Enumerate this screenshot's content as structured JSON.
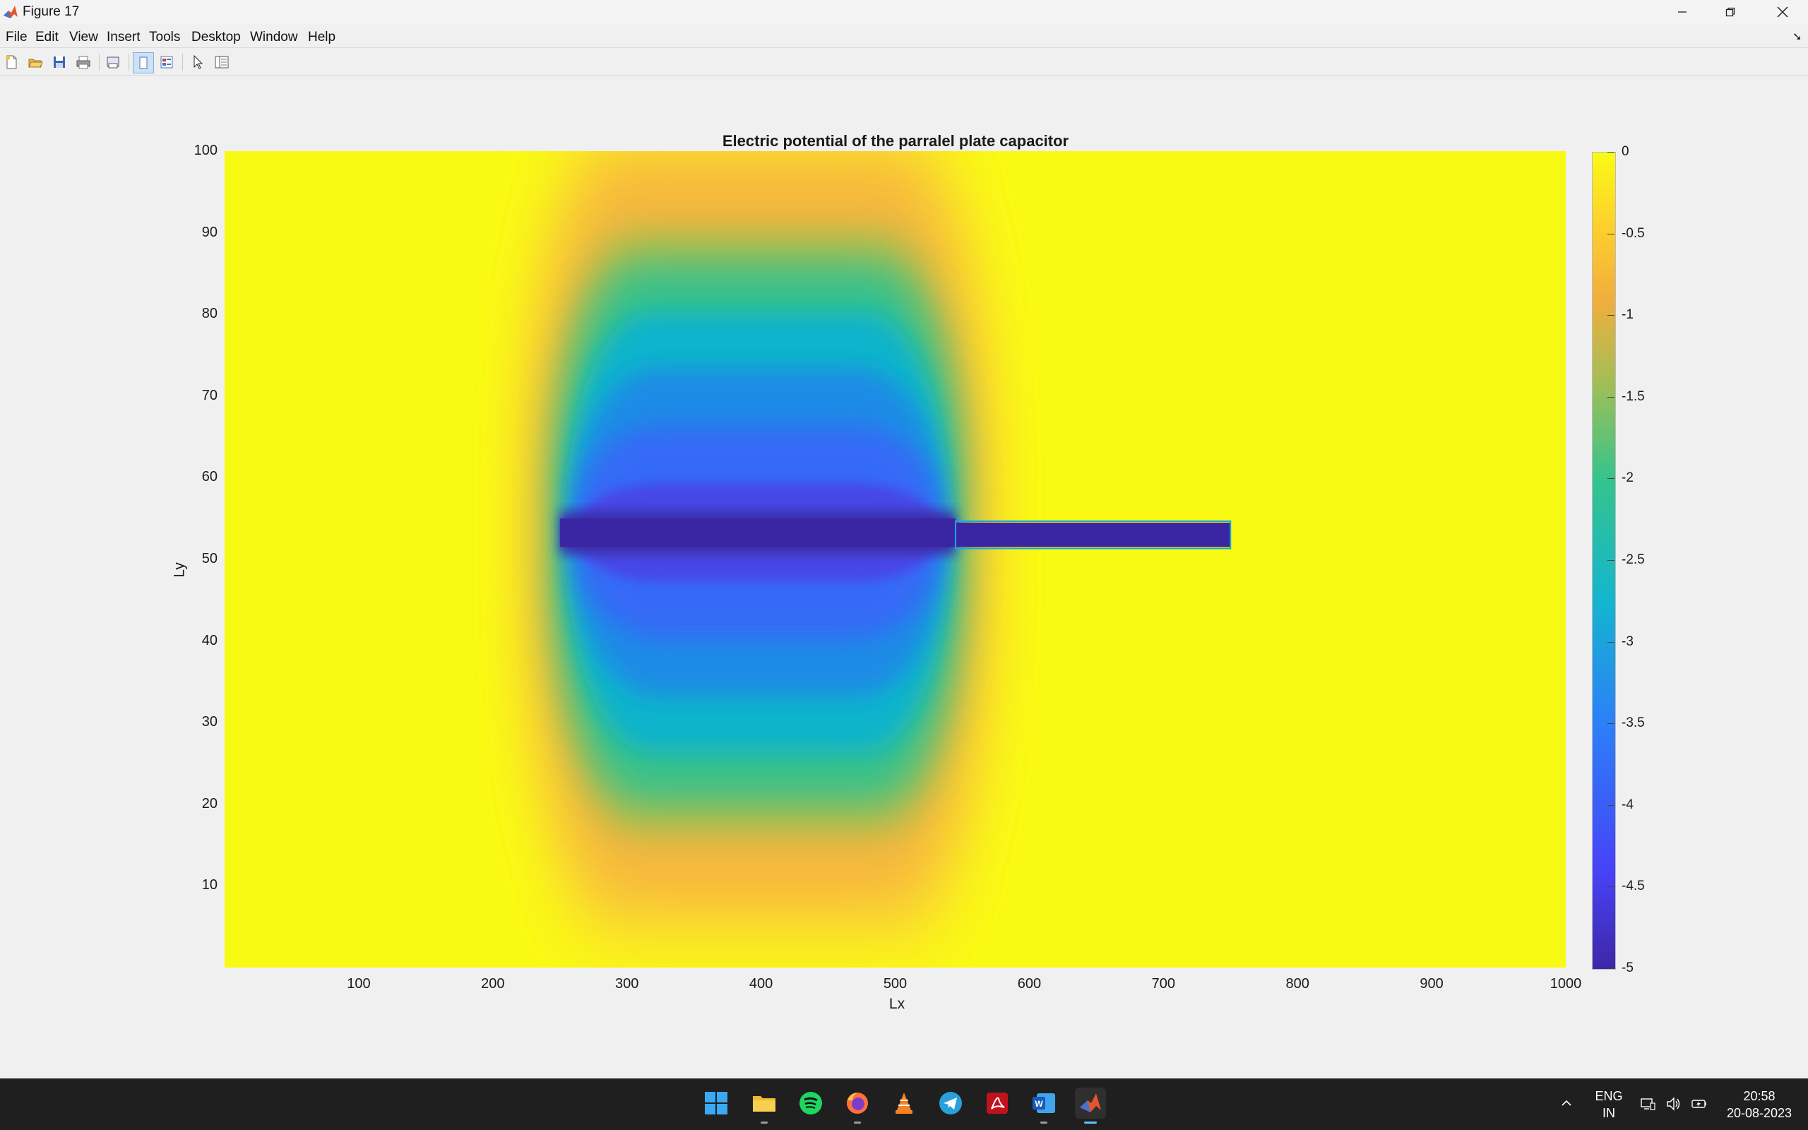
{
  "window": {
    "title": "Figure 17"
  },
  "menu": [
    "File",
    "Edit",
    "View",
    "Insert",
    "Tools",
    "Desktop",
    "Window",
    "Help"
  ],
  "toolbar": [
    "new-figure-icon",
    "open-file-icon",
    "save-icon",
    "print-icon",
    "print-preview-icon",
    "toggle-plot-tools-icon",
    "property-inspector-icon",
    "pointer-icon",
    "show-plot-tools-icon"
  ],
  "chart_data": {
    "type": "heatmap",
    "title": "Electric potential of the parralel plate capacitor",
    "xlabel": "Lx",
    "ylabel": "Ly",
    "xlim": [
      0,
      1000
    ],
    "ylim": [
      0,
      100
    ],
    "xticks": [
      "100",
      "200",
      "300",
      "400",
      "500",
      "600",
      "700",
      "800",
      "900",
      "1000"
    ],
    "yticks": [
      "10",
      "20",
      "30",
      "40",
      "50",
      "60",
      "70",
      "80",
      "90",
      "100"
    ],
    "colorbar": {
      "range": [
        -5,
        0
      ],
      "ticks": [
        "0",
        "-0.5",
        "-1",
        "-1.5",
        "-2",
        "-2.5",
        "-3",
        "-3.5",
        "-4",
        "-4.5",
        "-5"
      ],
      "colormap": "parula"
    },
    "features": [
      {
        "name": "plate",
        "x": [
          250,
          545
        ],
        "y": [
          51.5,
          55
        ],
        "value": -5
      },
      {
        "name": "plate",
        "x": [
          545,
          750
        ],
        "y": [
          51.5,
          54.5
        ],
        "value": -5
      }
    ],
    "background_value": 0
  },
  "taskbar": {
    "apps": [
      "windows-start-icon",
      "file-explorer-icon",
      "spotify-icon",
      "firefox-icon",
      "vlc-icon",
      "telegram-icon",
      "acrobat-icon",
      "word-icon",
      "matlab-icon"
    ],
    "language": "ENG",
    "region": "IN",
    "time": "20:58",
    "date": "20-08-2023"
  }
}
